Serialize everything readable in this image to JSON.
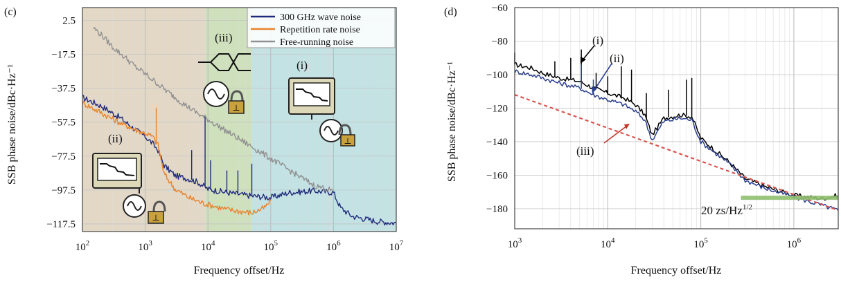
{
  "chart_data": [
    {
      "panel_label": "(c)",
      "type": "line",
      "xlabel": "Frequency offset/Hz",
      "ylabel": "SSB phase noise/dBc·Hz⁻¹",
      "xscale": "log",
      "xlim": [
        100,
        10000000
      ],
      "ylim": [
        -122,
        10
      ],
      "xticks": [
        {
          "value": 100,
          "base": "10",
          "exp": "2"
        },
        {
          "value": 1000,
          "base": "10",
          "exp": "3"
        },
        {
          "value": 10000,
          "base": "10",
          "exp": "4"
        },
        {
          "value": 100000,
          "base": "10",
          "exp": "5"
        },
        {
          "value": 1000000,
          "base": "10",
          "exp": "6"
        },
        {
          "value": 10000000,
          "base": "10",
          "exp": "7"
        }
      ],
      "yticks": [
        {
          "value": 2.5,
          "label": "2.5"
        },
        {
          "value": -17.5,
          "label": "−17.5"
        },
        {
          "value": -37.5,
          "label": "−37.5"
        },
        {
          "value": -57.5,
          "label": "−57.5"
        },
        {
          "value": -77.5,
          "label": "−77.5"
        },
        {
          "value": -97.5,
          "label": "−97.5"
        },
        {
          "value": -117.5,
          "label": "−117.5"
        }
      ],
      "grid": true,
      "legend_position": "top-right",
      "regions": [
        {
          "label": "(ii)",
          "from": 100,
          "to": 9000,
          "color": "#e3d8c6"
        },
        {
          "label": "(iii)",
          "from": 9000,
          "to": 50000,
          "color": "#cfe0bd"
        },
        {
          "label": "(i)",
          "from": 50000,
          "to": 10000000,
          "color": "#c2e2e3"
        }
      ],
      "annotations": [
        "(i)",
        "(ii)",
        "(iii)"
      ],
      "series": [
        {
          "name": "300 GHz wave noise",
          "color": "#1f2a7a",
          "points": [
            [
              100,
              -43
            ],
            [
              200,
              -48
            ],
            [
              400,
              -55
            ],
            [
              700,
              -62
            ],
            [
              1000,
              -66
            ],
            [
              1300,
              -70
            ],
            [
              1600,
              -74
            ],
            [
              2000,
              -83
            ],
            [
              3000,
              -89
            ],
            [
              5000,
              -91
            ],
            [
              7000,
              -93
            ],
            [
              10000,
              -97
            ],
            [
              20000,
              -99
            ],
            [
              50000,
              -101
            ],
            [
              100000,
              -102
            ],
            [
              200000,
              -99
            ],
            [
              500000,
              -98
            ],
            [
              1000000,
              -99
            ],
            [
              1300000,
              -108
            ],
            [
              2000000,
              -113
            ],
            [
              5000000,
              -116
            ],
            [
              10000000,
              -117
            ]
          ],
          "spikes": [
            [
              5500,
              -74
            ],
            [
              9000,
              -54
            ],
            [
              11000,
              -80
            ],
            [
              20000,
              -86
            ],
            [
              30000,
              -86
            ],
            [
              50000,
              -82
            ]
          ]
        },
        {
          "name": "Repetition rate noise",
          "color": "#e8832c",
          "points": [
            [
              100,
              -46
            ],
            [
              200,
              -52
            ],
            [
              400,
              -58
            ],
            [
              700,
              -62
            ],
            [
              1000,
              -64
            ],
            [
              1300,
              -66
            ],
            [
              1600,
              -71
            ],
            [
              2000,
              -88
            ],
            [
              3000,
              -97
            ],
            [
              5000,
              -102
            ],
            [
              8000,
              -105
            ],
            [
              10000,
              -106
            ],
            [
              20000,
              -109
            ],
            [
              50000,
              -111
            ],
            [
              80000,
              -108
            ],
            [
              100000,
              -104
            ]
          ],
          "spikes": [
            [
              1500,
              -49
            ]
          ]
        },
        {
          "name": "Free-running noise",
          "color": "#909090",
          "points": [
            [
              150,
              -2
            ],
            [
              200,
              -6
            ],
            [
              300,
              -13
            ],
            [
              500,
              -20
            ],
            [
              700,
              -25
            ],
            [
              1000,
              -29
            ],
            [
              2000,
              -38
            ],
            [
              3000,
              -43
            ],
            [
              5000,
              -49
            ],
            [
              8000,
              -54
            ],
            [
              10000,
              -56
            ],
            [
              20000,
              -63
            ],
            [
              50000,
              -72
            ],
            [
              100000,
              -79
            ],
            [
              200000,
              -86
            ],
            [
              500000,
              -95
            ],
            [
              1000000,
              -98
            ]
          ],
          "spikes": []
        }
      ]
    },
    {
      "panel_label": "(d)",
      "type": "line",
      "xlabel": "Frequency offset/Hz",
      "ylabel": "SSB phase noise/dBc·Hz⁻¹",
      "xscale": "log",
      "xlim": [
        1000,
        3000000
      ],
      "ylim": [
        -192,
        -60
      ],
      "xticks": [
        {
          "value": 1000,
          "base": "10",
          "exp": "3"
        },
        {
          "value": 10000,
          "base": "10",
          "exp": "4"
        },
        {
          "value": 100000,
          "base": "10",
          "exp": "5"
        },
        {
          "value": 1000000,
          "base": "10",
          "exp": "6"
        }
      ],
      "yticks": [
        {
          "value": -60,
          "label": "−60"
        },
        {
          "value": -80,
          "label": "−80"
        },
        {
          "value": -100,
          "label": "−100"
        },
        {
          "value": -120,
          "label": "−120"
        },
        {
          "value": -140,
          "label": "−140"
        },
        {
          "value": -160,
          "label": "−160"
        },
        {
          "value": -180,
          "label": "−180"
        }
      ],
      "grid": true,
      "annotations": [
        "(i)",
        "(ii)",
        "(iii)"
      ],
      "noise_floor_label": "20 zs/Hz",
      "noise_floor_exp": "1/2",
      "noise_floor": {
        "from": 270000,
        "to": 3000000,
        "value": -173.5
      },
      "series": [
        {
          "label": "(i)",
          "color": "#000000",
          "points": [
            [
              1000,
              -94
            ],
            [
              1500,
              -96
            ],
            [
              2000,
              -99
            ],
            [
              3000,
              -102
            ],
            [
              5000,
              -104
            ],
            [
              7000,
              -108
            ],
            [
              10000,
              -111
            ],
            [
              15000,
              -114
            ],
            [
              20000,
              -118
            ],
            [
              25000,
              -124
            ],
            [
              30000,
              -136
            ],
            [
              40000,
              -126
            ],
            [
              60000,
              -124
            ],
            [
              80000,
              -125
            ],
            [
              100000,
              -138
            ],
            [
              200000,
              -152
            ],
            [
              300000,
              -162
            ],
            [
              500000,
              -167
            ],
            [
              1000000,
              -172
            ],
            [
              2000000,
              -174
            ],
            [
              3000000,
              -172
            ]
          ],
          "spikes": [
            [
              1000,
              -87
            ],
            [
              2700,
              -92
            ],
            [
              4000,
              -90
            ],
            [
              5200,
              -85
            ],
            [
              7500,
              -99
            ],
            [
              10000,
              -101
            ],
            [
              14000,
              -95
            ],
            [
              18000,
              -97
            ],
            [
              26000,
              -111
            ],
            [
              45000,
              -109
            ],
            [
              70000,
              -103
            ],
            [
              80000,
              -102
            ]
          ]
        },
        {
          "label": "(ii)",
          "color": "#2b3f8f",
          "points": [
            [
              1000,
              -98
            ],
            [
              1500,
              -100
            ],
            [
              2000,
              -102
            ],
            [
              3000,
              -105
            ],
            [
              5000,
              -108
            ],
            [
              7000,
              -112
            ],
            [
              10000,
              -115
            ],
            [
              15000,
              -118
            ],
            [
              20000,
              -122
            ],
            [
              25000,
              -127
            ],
            [
              30000,
              -139
            ],
            [
              40000,
              -128
            ],
            [
              60000,
              -126
            ],
            [
              80000,
              -127
            ],
            [
              100000,
              -140
            ],
            [
              200000,
              -153
            ],
            [
              300000,
              -163
            ],
            [
              500000,
              -168
            ],
            [
              1000000,
              -173
            ],
            [
              2000000,
              -178
            ],
            [
              3000000,
              -181
            ]
          ],
          "spikes": [
            [
              5200,
              -94
            ],
            [
              7000,
              -103
            ]
          ]
        },
        {
          "label": "(iii)",
          "color": "#d9534f",
          "dashed": true,
          "points": [
            [
              1000,
              -112
            ],
            [
              3000000,
              -181
            ]
          ]
        }
      ]
    }
  ]
}
